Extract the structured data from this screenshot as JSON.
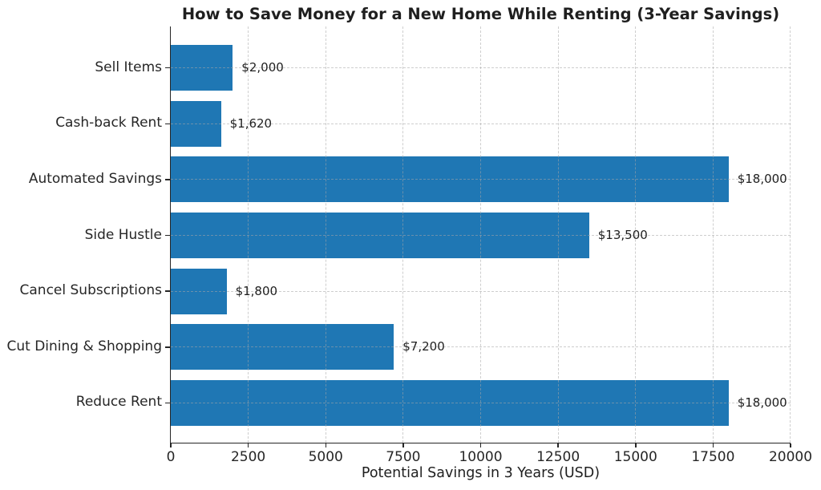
{
  "chart_data": {
    "type": "bar",
    "orientation": "horizontal",
    "title": "How to Save Money for a New Home While Renting (3-Year Savings)",
    "xlabel": "Potential Savings in 3 Years (USD)",
    "ylabel": "",
    "categories": [
      "Sell Items",
      "Cash-back Rent",
      "Automated Savings",
      "Side Hustle",
      "Cancel Subscriptions",
      "Cut Dining & Shopping",
      "Reduce Rent"
    ],
    "values": [
      2000,
      1620,
      18000,
      13500,
      1800,
      7200,
      18000
    ],
    "value_labels": [
      "$2,000",
      "$1,620",
      "$18,000",
      "$13,500",
      "$1,800",
      "$7,200",
      "$18,000"
    ],
    "xlim": [
      0,
      20000
    ],
    "xticks": [
      0,
      2500,
      5000,
      7500,
      10000,
      12500,
      15000,
      17500,
      20000
    ],
    "xtick_labels": [
      "0",
      "2500",
      "5000",
      "7500",
      "10000",
      "12500",
      "15000",
      "17500",
      "20000"
    ],
    "grid": true,
    "grid_style": "dashed",
    "legend": "none",
    "bar_color": "#1f77b4",
    "axis_color": "#262626",
    "grid_color": "#cccccc",
    "text_color": "#1f1f1f",
    "background_color": "#ffffff"
  }
}
